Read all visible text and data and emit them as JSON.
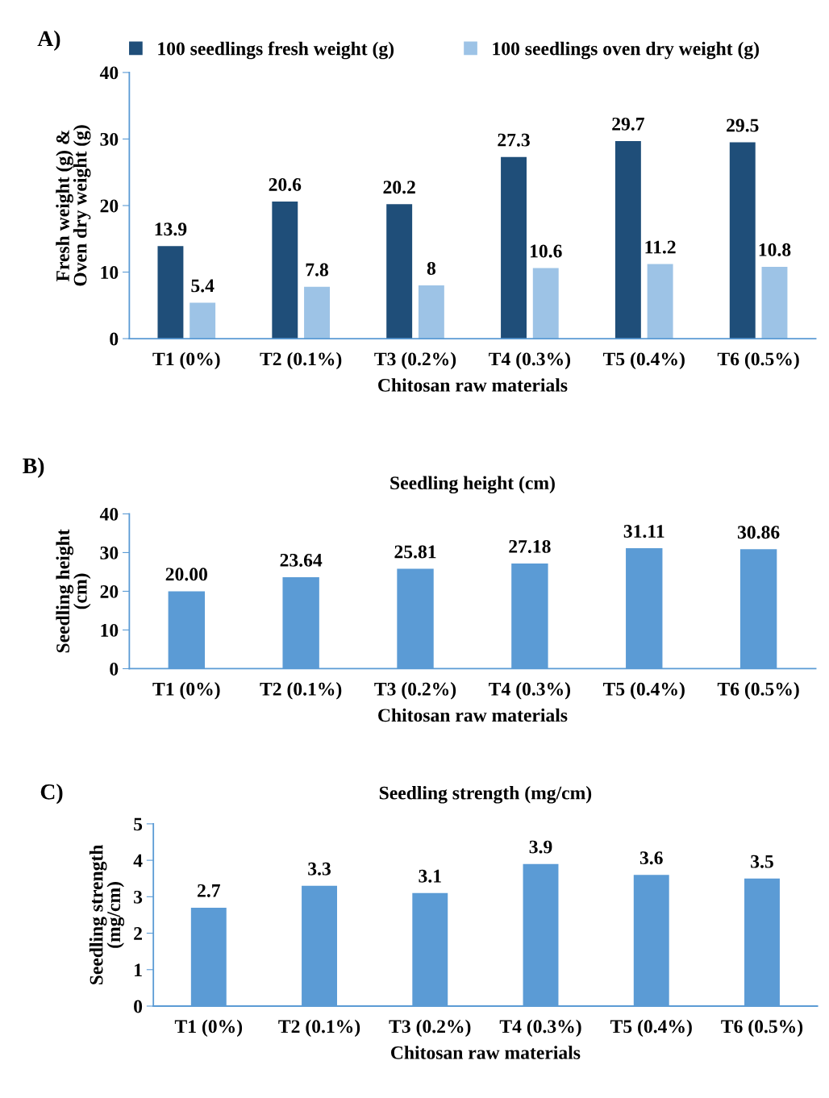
{
  "chart_data": [
    {
      "type": "bar",
      "categories": [
        "T1 (0%)",
        "T2 (0.1%)",
        "T3 (0.2%)",
        "T4 (0.3%)",
        "T5 (0.4%)",
        "T6 (0.5%)"
      ],
      "series": [
        {
          "name": "100 seedlings fresh weight (g)",
          "color": "#1f4e79",
          "values": [
            13.9,
            20.6,
            20.2,
            27.3,
            29.7,
            29.5
          ]
        },
        {
          "name": "100 seedlings oven dry weight (g)",
          "color": "#9dc3e6",
          "values": [
            5.4,
            7.8,
            8,
            10.6,
            11.2,
            10.8
          ]
        }
      ],
      "xlabel": "Chitosan raw materials",
      "ylabel": "Fresh weight (g) &\nOven dry weight (g)",
      "ylim": [
        0,
        40
      ],
      "yticks": [
        0,
        10,
        20,
        30,
        40
      ],
      "legend": "top",
      "data_labels": true,
      "grid": false,
      "annotations": [
        "A)"
      ]
    },
    {
      "type": "bar",
      "title": "Seedling height (cm)",
      "categories": [
        "T1 (0%)",
        "T2 (0.1%)",
        "T3 (0.2%)",
        "T4 (0.3%)",
        "T5 (0.4%)",
        "T6 (0.5%)"
      ],
      "series": [
        {
          "color": "#5b9bd5",
          "values": [
            20.0,
            23.64,
            25.81,
            27.18,
            31.11,
            30.86
          ],
          "value_labels": [
            "20.00",
            "23.64",
            "25.81",
            "27.18",
            "31.11",
            "30.86"
          ]
        }
      ],
      "xlabel": "Chitosan raw materials",
      "ylabel": "Seedling height\n(cm)",
      "ylim": [
        0,
        40
      ],
      "yticks": [
        0,
        10,
        20,
        30,
        40
      ],
      "legend": false,
      "grid": false,
      "annotations": [
        "B)"
      ]
    },
    {
      "type": "bar",
      "title": "Seedling strength (mg/cm)",
      "categories": [
        "T1 (0%)",
        "T2 (0.1%)",
        "T3 (0.2%)",
        "T4 (0.3%)",
        "T5 (0.4%)",
        "T6 (0.5%)"
      ],
      "series": [
        {
          "color": "#5b9bd5",
          "values": [
            2.7,
            3.3,
            3.1,
            3.9,
            3.6,
            3.5
          ]
        }
      ],
      "xlabel": "Chitosan raw materials",
      "ylabel": "Seedling strength\n(mg/cm)",
      "ylim": [
        0,
        5
      ],
      "yticks": [
        0,
        1,
        2,
        3,
        4,
        5
      ],
      "legend": false,
      "data_labels": true,
      "grid": false,
      "annotations": [
        "C)"
      ]
    }
  ]
}
